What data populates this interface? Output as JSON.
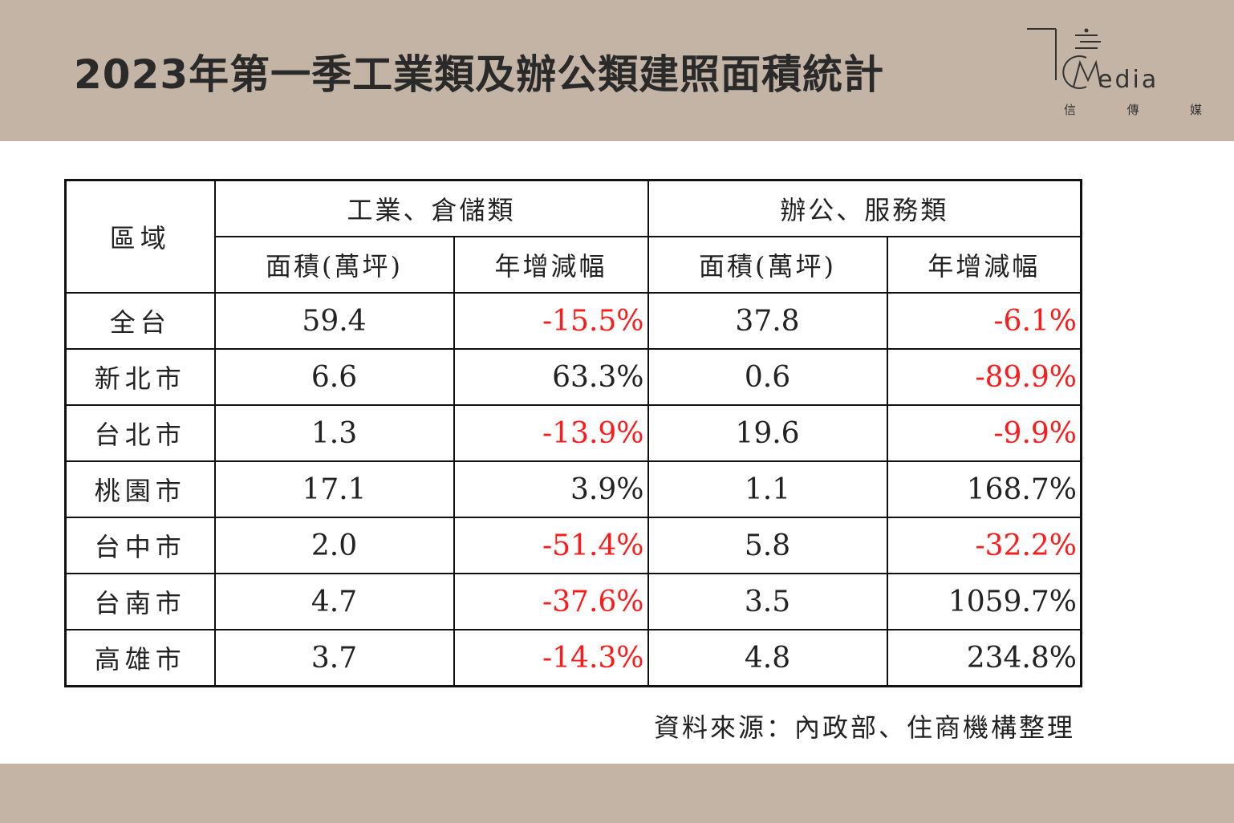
{
  "title": "2023年第一季工業類及辦公類建照面積統計",
  "logo": {
    "word": "edia",
    "sub": [
      "信",
      "傳",
      "媒"
    ]
  },
  "table": {
    "region_header": "區域",
    "groups": [
      "工業、倉儲類",
      "辦公、服務類"
    ],
    "subheaders": [
      "面積(萬坪)",
      "年增減幅",
      "面積(萬坪)",
      "年增減幅"
    ],
    "rows": [
      {
        "region": "全台",
        "ind_area": "59.4",
        "ind_yoy": "-15.5%",
        "ind_neg": true,
        "off_area": "37.8",
        "off_yoy": "-6.1%",
        "off_neg": true
      },
      {
        "region": "新北市",
        "ind_area": "6.6",
        "ind_yoy": "63.3%",
        "ind_neg": false,
        "off_area": "0.6",
        "off_yoy": "-89.9%",
        "off_neg": true
      },
      {
        "region": "台北市",
        "ind_area": "1.3",
        "ind_yoy": "-13.9%",
        "ind_neg": true,
        "off_area": "19.6",
        "off_yoy": "-9.9%",
        "off_neg": true
      },
      {
        "region": "桃園市",
        "ind_area": "17.1",
        "ind_yoy": "3.9%",
        "ind_neg": false,
        "off_area": "1.1",
        "off_yoy": "168.7%",
        "off_neg": false
      },
      {
        "region": "台中市",
        "ind_area": "2.0",
        "ind_yoy": "-51.4%",
        "ind_neg": true,
        "off_area": "5.8",
        "off_yoy": "-32.2%",
        "off_neg": true
      },
      {
        "region": "台南市",
        "ind_area": "4.7",
        "ind_yoy": "-37.6%",
        "ind_neg": true,
        "off_area": "3.5",
        "off_yoy": "1059.7%",
        "off_neg": false
      },
      {
        "region": "高雄市",
        "ind_area": "3.7",
        "ind_yoy": "-14.3%",
        "ind_neg": true,
        "off_area": "4.8",
        "off_yoy": "234.8%",
        "off_neg": false
      }
    ]
  },
  "source": "資料來源：內政部、住商機構整理",
  "colors": {
    "band": "#c4b4a6",
    "negative": "#ff1a1a",
    "text": "#222222"
  }
}
